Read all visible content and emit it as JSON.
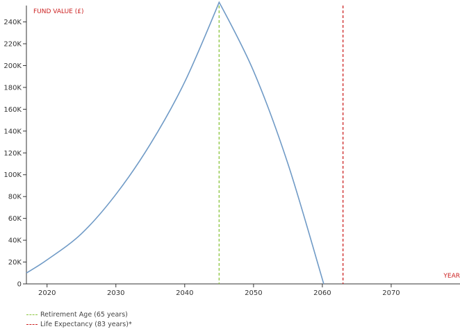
{
  "chart_data": {
    "type": "line",
    "y_axis_title": "FUND VALUE (£)",
    "x_axis_title": "YEAR",
    "xlim": [
      2017,
      2080
    ],
    "ylim": [
      0,
      255000
    ],
    "x_ticks": [
      2020,
      2030,
      2040,
      2050,
      2060,
      2070
    ],
    "x_tick_labels": [
      "2020",
      "2030",
      "2040",
      "2050",
      "2060",
      "2070"
    ],
    "y_ticks": [
      0,
      20000,
      40000,
      60000,
      80000,
      100000,
      120000,
      140000,
      160000,
      180000,
      200000,
      220000,
      240000
    ],
    "y_tick_labels": [
      "0",
      "20K",
      "40K",
      "60K",
      "80K",
      "100K",
      "120K",
      "140K",
      "160K",
      "180K",
      "200K",
      "220K",
      "240K"
    ],
    "grid": false,
    "series": [
      {
        "color": "#6f9ac6",
        "points": [
          [
            2017,
            10000
          ],
          [
            2020,
            22000
          ],
          [
            2025,
            46000
          ],
          [
            2030,
            82000
          ],
          [
            2035,
            128000
          ],
          [
            2040,
            185000
          ],
          [
            2045,
            258000
          ],
          [
            2050,
            195000
          ],
          [
            2055,
            110000
          ],
          [
            2060.2,
            0
          ]
        ]
      }
    ],
    "reference_lines": [
      {
        "x": 2045,
        "color": "#8cc63f",
        "label": "Retirement Age (65 years)"
      },
      {
        "x": 2063,
        "color": "#cc2222",
        "label": "Life Expectancy (83 years)*"
      }
    ],
    "colors": {
      "axis_title": "#cc2222",
      "axis": "#333333"
    }
  }
}
